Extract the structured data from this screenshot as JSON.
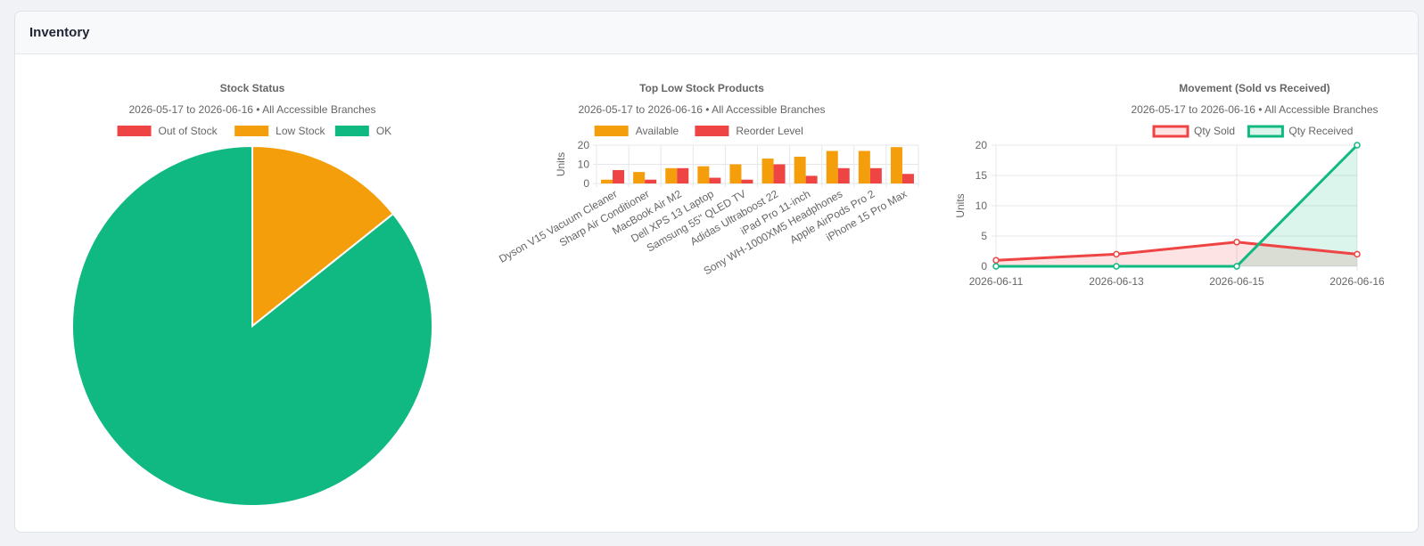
{
  "card": {
    "title": "Inventory"
  },
  "colors": {
    "red": "#ef4444",
    "orange": "#f59e0b",
    "green": "#10b981",
    "grid": "#e5e7eb",
    "text": "#666666"
  },
  "chart_data": [
    {
      "type": "pie",
      "title": "Stock Status",
      "subtitle": "2026-05-17 to 2026-06-16 • All Accessible Branches",
      "legend": {
        "position": "top"
      },
      "labels": [
        "Out of Stock",
        "Low Stock",
        "OK"
      ],
      "values": [
        0,
        1,
        6
      ],
      "colors": [
        "#ef4444",
        "#f59e0b",
        "#10b981"
      ]
    },
    {
      "type": "bar",
      "title": "Top Low Stock Products",
      "subtitle": "2026-05-17 to 2026-06-16 • All Accessible Branches",
      "legend": {
        "position": "top"
      },
      "categories": [
        "Dyson V15 Vacuum Cleaner",
        "Sharp Air Conditioner",
        "MacBook Air M2",
        "Dell XPS 13 Laptop",
        "Samsung 55\" QLED TV",
        "Adidas Ultraboost 22",
        "iPad Pro 11-inch",
        "Sony WH-1000XM5 Headphones",
        "Apple AirPods Pro 2",
        "iPhone 15 Pro Max"
      ],
      "series": [
        {
          "name": "Available",
          "color": "#f59e0b",
          "values": [
            2,
            6,
            8,
            9,
            10,
            13,
            14,
            17,
            17,
            19
          ]
        },
        {
          "name": "Reorder Level",
          "color": "#ef4444",
          "values": [
            7,
            2,
            8,
            3,
            2,
            10,
            4,
            8,
            8,
            5
          ]
        }
      ],
      "ylabel": "Units",
      "ylim": [
        0,
        20
      ],
      "yticks": [
        0,
        10,
        20
      ],
      "grid": true
    },
    {
      "type": "line",
      "title": "Movement (Sold vs Received)",
      "subtitle": "2026-05-17 to 2026-06-16 • All Accessible Branches",
      "legend": {
        "position": "top"
      },
      "x": [
        "2026-06-11",
        "2026-06-13",
        "2026-06-15",
        "2026-06-16"
      ],
      "series": [
        {
          "name": "Qty Sold",
          "color": "#ef4444",
          "fill": "rgba(239,68,68,0.15)",
          "values": [
            1,
            2,
            4,
            2
          ]
        },
        {
          "name": "Qty Received",
          "color": "#10b981",
          "fill": "rgba(16,185,129,0.15)",
          "values": [
            0,
            0,
            0,
            20
          ]
        }
      ],
      "ylabel": "Units",
      "ylim": [
        0,
        20
      ],
      "yticks": [
        0,
        5,
        10,
        15,
        20
      ],
      "grid": true,
      "area": true
    }
  ]
}
